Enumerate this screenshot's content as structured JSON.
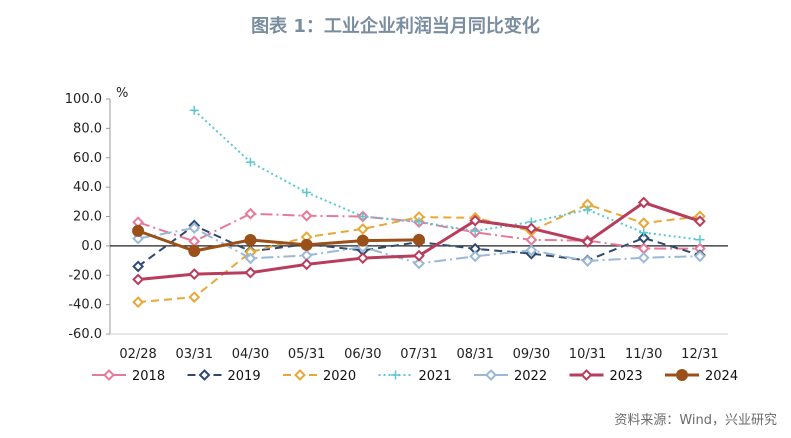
{
  "title": "图表 1：工业企业利润当月同比变化",
  "source": "资料来源：Wind，兴业研究",
  "chart_data": {
    "type": "line",
    "title": "图表 1：工业企业利润当月同比变化",
    "ylabel": "%",
    "ylim": [
      -60,
      100
    ],
    "yticks": [
      -60,
      -40,
      -20,
      0,
      20,
      40,
      60,
      80,
      100
    ],
    "ytick_labels": [
      "-60.0",
      "-40.0",
      "-20.0",
      "0.0",
      "20.0",
      "40.0",
      "60.0",
      "80.0",
      "100.0"
    ],
    "categories": [
      "02/28",
      "03/31",
      "04/30",
      "05/31",
      "06/30",
      "07/31",
      "08/31",
      "09/30",
      "10/31",
      "11/30",
      "12/31"
    ],
    "legend_position": "bottom",
    "series": [
      {
        "name": "2018",
        "color": "#e8799a",
        "dash": "long-dash-dot",
        "marker": "diamond",
        "values": [
          16.1,
          3.1,
          21.9,
          20.5,
          20.0,
          16.2,
          9.2,
          4.1,
          3.6,
          -1.8,
          -1.9
        ]
      },
      {
        "name": "2019",
        "color": "#2f4a6e",
        "dash": "dash",
        "marker": "diamond",
        "values": [
          -14.0,
          13.9,
          -3.7,
          1.1,
          -3.1,
          2.6,
          -2.0,
          -5.3,
          -9.9,
          5.4,
          -6.3
        ]
      },
      {
        "name": "2020",
        "color": "#e8a838",
        "dash": "dash",
        "marker": "diamond",
        "values": [
          -38.3,
          -34.9,
          -4.3,
          6.0,
          11.5,
          19.6,
          19.1,
          10.1,
          28.2,
          15.5,
          20.1
        ]
      },
      {
        "name": "2021",
        "color": "#5cc8d0",
        "dash": "dot",
        "marker": "cross",
        "values": [
          null,
          92.3,
          57.0,
          36.4,
          20.0,
          16.4,
          10.1,
          16.3,
          24.6,
          9.0,
          4.2
        ]
      },
      {
        "name": "2022",
        "color": "#9ab8d8",
        "dash": "long-dash-dot",
        "marker": "diamond",
        "values": [
          5.0,
          12.2,
          -8.5,
          -6.5,
          -0.8,
          -12.0,
          -7.1,
          -3.0,
          -10.3,
          -8.1,
          -7.0
        ]
      },
      {
        "name": "2023",
        "color": "#b83c5c",
        "dash": "solid",
        "marker": "diamond",
        "values": [
          -22.9,
          -19.2,
          -18.2,
          -12.6,
          -8.3,
          -6.7,
          17.2,
          11.9,
          2.7,
          29.5,
          16.8
        ]
      },
      {
        "name": "2024",
        "color": "#9a5018",
        "dash": "solid",
        "marker": "circle",
        "values": [
          10.2,
          -3.5,
          4.0,
          0.7,
          3.6,
          4.1,
          null,
          null,
          null,
          null,
          null
        ]
      }
    ]
  }
}
